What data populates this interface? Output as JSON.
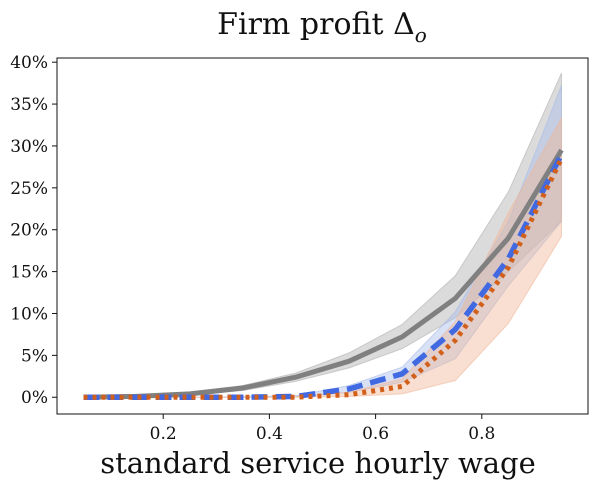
{
  "chart_data": {
    "type": "line",
    "title": "Firm profit Δ",
    "title_subscript": "o",
    "xlabel": "standard service hourly wage",
    "ylabel": "",
    "xlim": [
      0.0,
      1.0
    ],
    "ylim": [
      -2,
      40.5
    ],
    "x_ticks": [
      0.2,
      0.4,
      0.6,
      0.8
    ],
    "x_tick_labels": [
      "0.2",
      "0.4",
      "0.6",
      "0.8"
    ],
    "y_ticks": [
      0,
      5,
      10,
      15,
      20,
      25,
      30,
      35,
      40
    ],
    "y_tick_labels": [
      "0%",
      "5%",
      "10%",
      "15%",
      "20%",
      "25%",
      "30%",
      "35%",
      "40%"
    ],
    "grid": false,
    "legend": "none",
    "x": [
      0.05,
      0.15,
      0.25,
      0.35,
      0.45,
      0.55,
      0.65,
      0.75,
      0.85,
      0.95
    ],
    "series": [
      {
        "style": "solid",
        "color": "#808080",
        "band_color": "#b0b0b0",
        "values": [
          0,
          0.1,
          0.4,
          1.1,
          2.4,
          4.3,
          7.2,
          11.8,
          19,
          29.5
        ],
        "lower": [
          0,
          0.05,
          0.25,
          0.8,
          1.9,
          3.5,
          5.8,
          9.5,
          15,
          21
        ],
        "upper": [
          0,
          0.2,
          0.6,
          1.4,
          2.9,
          5.3,
          8.7,
          14.5,
          24.5,
          38.7
        ]
      },
      {
        "style": "dashed",
        "color": "#4169e1",
        "band_color": "#a8bde8",
        "values": [
          0,
          0,
          0,
          0,
          0.1,
          1,
          2.8,
          8.1,
          16.5,
          29
        ],
        "lower": [
          0,
          0,
          0,
          0,
          0.05,
          0.6,
          1.8,
          4.6,
          13.3,
          21
        ],
        "upper": [
          0,
          0,
          0,
          0.05,
          0.2,
          1.4,
          3.6,
          10.2,
          21,
          37.2
        ]
      },
      {
        "style": "dotted",
        "color": "#d2601a",
        "band_color": "#f0b89a",
        "values": [
          0,
          0,
          0,
          0,
          0,
          0.3,
          1.3,
          6.8,
          15.5,
          28.5
        ],
        "lower": [
          0,
          0,
          0,
          0,
          0,
          0.1,
          0.4,
          2,
          8.8,
          19.2
        ],
        "upper": [
          0,
          0,
          0,
          0,
          0.05,
          0.6,
          2.2,
          9,
          22,
          33.3
        ]
      }
    ]
  }
}
